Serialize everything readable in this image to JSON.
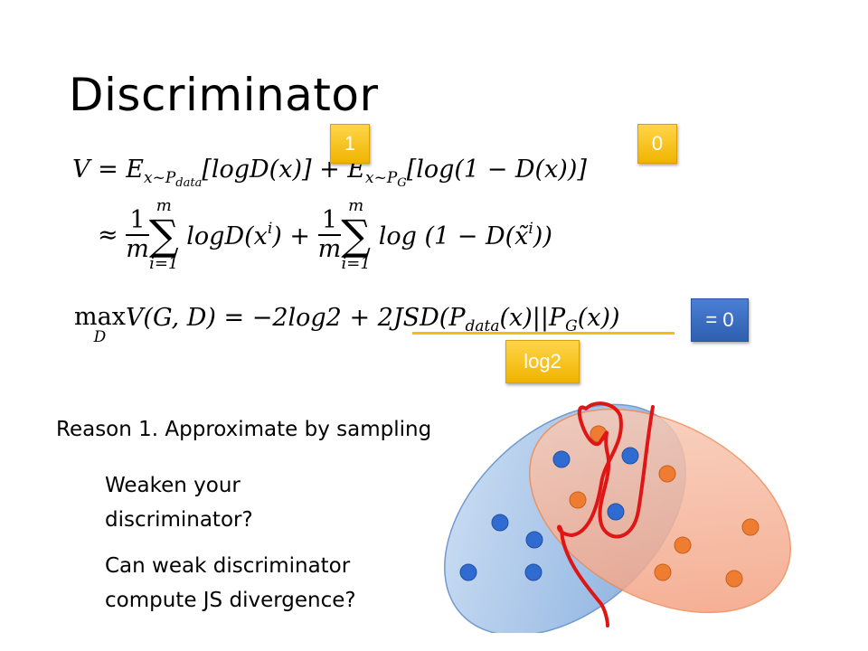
{
  "slide": {
    "title": "Discriminator"
  },
  "equations": {
    "line1": {
      "lhs": "V = E",
      "sub1": "x~P",
      "sub1b": "data",
      "term1": "[logD(x)] + E",
      "sub2": "x~P",
      "sub2b": "G",
      "term2": "[log(1 − D(x))]"
    },
    "line2": {
      "approx": "≈",
      "frac_num": "1",
      "frac_den": "m",
      "sum_top": "m",
      "sum_bot": "i=1",
      "sigma": "∑",
      "term1": "logD(x",
      "sup1": "i",
      "term1_end": ") +",
      "term2": "log (1 − D(x̃",
      "sup2": "i",
      "term2_end": "))"
    },
    "line3": {
      "max": "max",
      "max_sub": "D",
      "body": "V(G, D) = −2log2 + 2JSD(P",
      "sub1": "data",
      "mid": "(x)||P",
      "sub2": "G",
      "end": "(x))"
    }
  },
  "badges": {
    "one": "1",
    "zero": "0",
    "equals_zero": "= 0",
    "log2": "log2"
  },
  "text": {
    "reason": "Reason 1. Approximate by sampling",
    "weaken_line1": "Weaken your",
    "weaken_line2": "discriminator?",
    "can_line1": "Can weak discriminator",
    "can_line2": "compute JS divergence?"
  },
  "colors": {
    "yellow_badge": "#f5bd12",
    "blue_badge": "#3a6fc4",
    "underline": "#f5bd12",
    "blue_dot": "#2f6bd0",
    "orange_dot": "#ee7d32",
    "blue_ellipse": "#9dbfe6",
    "orange_ellipse": "#f4a88a",
    "red_curve": "#e01515"
  }
}
